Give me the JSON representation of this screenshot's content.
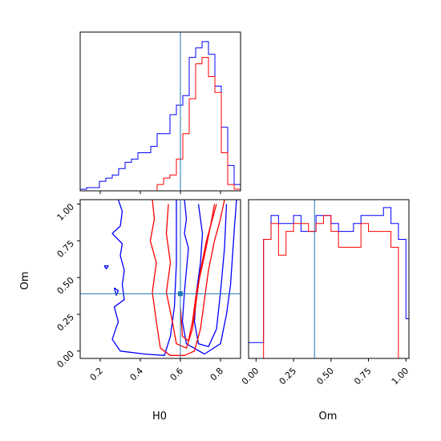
{
  "chart_data": {
    "type": "corner",
    "parameters": [
      "H0",
      "Om"
    ],
    "truth": {
      "H0": 0.6,
      "Om": 0.39
    },
    "colors": {
      "blue": "#0000ff",
      "red": "#ff0000",
      "truth": "#1f77b4"
    },
    "panels": [
      {
        "id": "hist-H0",
        "type": "histogram",
        "xlim": [
          0.1,
          0.9
        ],
        "bins": [
          0.1,
          0.132,
          0.164,
          0.196,
          0.228,
          0.26,
          0.292,
          0.324,
          0.356,
          0.388,
          0.42,
          0.452,
          0.484,
          0.516,
          0.548,
          0.58,
          0.612,
          0.644,
          0.676,
          0.708,
          0.74,
          0.772,
          0.804,
          0.836,
          0.868,
          0.9
        ],
        "series": [
          {
            "name": "",
            "color": "#0000ff",
            "counts": [
              0.5,
              1,
              1,
              3,
              4,
              5,
              7,
              9,
              10,
              12,
              12,
              14,
              18,
              18,
              24,
              27,
              30,
              42,
              45,
              47,
              43,
              33,
              20,
              8,
              2
            ]
          },
          {
            "name": "",
            "color": "#ff0000",
            "counts": [
              0,
              0,
              0,
              0,
              0,
              0,
              0,
              0,
              0,
              0,
              0,
              0,
              2,
              4,
              5,
              10,
              18,
              29,
              40,
              42,
              36,
              31,
              12,
              2,
              0.5
            ]
          }
        ],
        "ymax": 50
      },
      {
        "id": "hist-Om",
        "type": "histogram",
        "xlim": [
          -0.05,
          1.02
        ],
        "bins": [
          -0.05,
          0.0,
          0.05,
          0.1,
          0.15,
          0.2,
          0.25,
          0.3,
          0.35,
          0.4,
          0.45,
          0.5,
          0.55,
          0.6,
          0.65,
          0.7,
          0.75,
          0.8,
          0.85,
          0.9,
          0.95,
          1.0,
          1.02
        ],
        "series": [
          {
            "name": "",
            "color": "#0000ff",
            "counts": [
              2,
              2,
              15,
              18,
              17,
              17,
              18,
              16,
              16,
              18,
              18,
              17,
              16,
              16,
              17,
              18,
              18,
              18,
              19,
              17,
              15,
              5
            ]
          },
          {
            "name": "",
            "color": "#ff0000",
            "counts": [
              0,
              0,
              15,
              17,
              13,
              16,
              17,
              17,
              16,
              17,
              18,
              16,
              14,
              14,
              14,
              17,
              16,
              16,
              16,
              14,
              0,
              0
            ]
          }
        ],
        "ymax": 20
      },
      {
        "id": "contour-H0-Om",
        "type": "contour",
        "xlabel": "H0",
        "ylabel": "Om",
        "xlim": [
          0.1,
          0.9
        ],
        "ylim": [
          -0.05,
          1.03
        ],
        "xticks": [
          0.2,
          0.4,
          0.6,
          0.8
        ],
        "xtick_labels": [
          "0.2",
          "0.4",
          "0.6",
          "0.8"
        ],
        "yticks": [
          0.0,
          0.25,
          0.5,
          0.75,
          1.0
        ],
        "ytick_labels": [
          "0.00",
          "0.25",
          "0.50",
          "0.75",
          "1.00"
        ],
        "contours": [
          {
            "color": "#0000ff",
            "points": [
              [
                0.29,
                1.03
              ],
              [
                0.31,
                0.95
              ],
              [
                0.3,
                0.85
              ],
              [
                0.26,
                0.8
              ],
              [
                0.31,
                0.73
              ],
              [
                0.3,
                0.65
              ],
              [
                0.32,
                0.55
              ],
              [
                0.31,
                0.45
              ],
              [
                0.32,
                0.35
              ],
              [
                0.27,
                0.3
              ],
              [
                0.29,
                0.2
              ],
              [
                0.26,
                0.08
              ],
              [
                0.3,
                0.0
              ],
              [
                0.42,
                -0.02
              ],
              [
                0.52,
                -0.03
              ],
              [
                0.55,
                0.1
              ],
              [
                0.57,
                0.3
              ],
              [
                0.58,
                0.6
              ],
              [
                0.58,
                1.03
              ]
            ]
          },
          {
            "color": "#0000ff",
            "points": [
              [
                0.62,
                1.03
              ],
              [
                0.63,
                0.9
              ],
              [
                0.62,
                0.8
              ],
              [
                0.64,
                0.7
              ],
              [
                0.63,
                0.55
              ],
              [
                0.62,
                0.4
              ],
              [
                0.61,
                0.2
              ],
              [
                0.63,
                0.05
              ],
              [
                0.72,
                -0.02
              ],
              [
                0.8,
                0.05
              ],
              [
                0.83,
                0.25
              ],
              [
                0.85,
                0.45
              ],
              [
                0.86,
                0.65
              ],
              [
                0.87,
                0.85
              ],
              [
                0.88,
                1.03
              ]
            ]
          },
          {
            "color": "#0000ff",
            "points": [
              [
                0.69,
                1.0
              ],
              [
                0.71,
                0.8
              ],
              [
                0.7,
                0.6
              ],
              [
                0.68,
                0.4
              ],
              [
                0.67,
                0.2
              ],
              [
                0.69,
                0.05
              ],
              [
                0.74,
                0.03
              ],
              [
                0.78,
                0.15
              ],
              [
                0.8,
                0.4
              ],
              [
                0.82,
                0.7
              ],
              [
                0.83,
                1.0
              ]
            ]
          },
          {
            "color": "#0000ff",
            "points": [
              [
                0.27,
                0.43
              ],
              [
                0.28,
                0.38
              ],
              [
                0.29,
                0.41
              ],
              [
                0.27,
                0.43
              ]
            ]
          },
          {
            "color": "#0000ff",
            "points": [
              [
                0.22,
                0.58
              ],
              [
                0.23,
                0.56
              ],
              [
                0.24,
                0.58
              ],
              [
                0.22,
                0.58
              ]
            ]
          },
          {
            "color": "#ff0000",
            "points": [
              [
                0.46,
                1.03
              ],
              [
                0.47,
                0.9
              ],
              [
                0.45,
                0.75
              ],
              [
                0.48,
                0.6
              ],
              [
                0.46,
                0.4
              ],
              [
                0.48,
                0.2
              ],
              [
                0.5,
                0.02
              ],
              [
                0.55,
                -0.03
              ],
              [
                0.62,
                -0.03
              ],
              [
                0.67,
                0.0
              ],
              [
                0.7,
                0.15
              ],
              [
                0.72,
                0.35
              ],
              [
                0.74,
                0.55
              ],
              [
                0.77,
                0.75
              ],
              [
                0.8,
                0.9
              ],
              [
                0.82,
                1.03
              ]
            ]
          },
          {
            "color": "#ff0000",
            "points": [
              [
                0.54,
                1.0
              ],
              [
                0.53,
                0.8
              ],
              [
                0.55,
                0.6
              ],
              [
                0.53,
                0.4
              ],
              [
                0.56,
                0.2
              ],
              [
                0.58,
                0.05
              ],
              [
                0.63,
                0.02
              ],
              [
                0.66,
                0.15
              ],
              [
                0.68,
                0.35
              ],
              [
                0.7,
                0.55
              ],
              [
                0.73,
                0.75
              ],
              [
                0.76,
                0.9
              ],
              [
                0.78,
                1.0
              ]
            ]
          },
          {
            "color": "#ff0000",
            "points": [
              [
                0.6,
                0.3
              ],
              [
                0.61,
                0.1
              ],
              [
                0.64,
                0.07
              ],
              [
                0.66,
                0.2
              ],
              [
                0.68,
                0.4
              ],
              [
                0.72,
                0.65
              ],
              [
                0.75,
                0.85
              ],
              [
                0.77,
                1.0
              ]
            ]
          }
        ]
      }
    ],
    "hist_Om_axis": {
      "xlabel": "Om",
      "xticks": [
        0.0,
        0.25,
        0.5,
        0.75,
        1.0
      ],
      "xtick_labels": [
        "0.00",
        "0.25",
        "0.50",
        "0.75",
        "1.00"
      ]
    }
  }
}
